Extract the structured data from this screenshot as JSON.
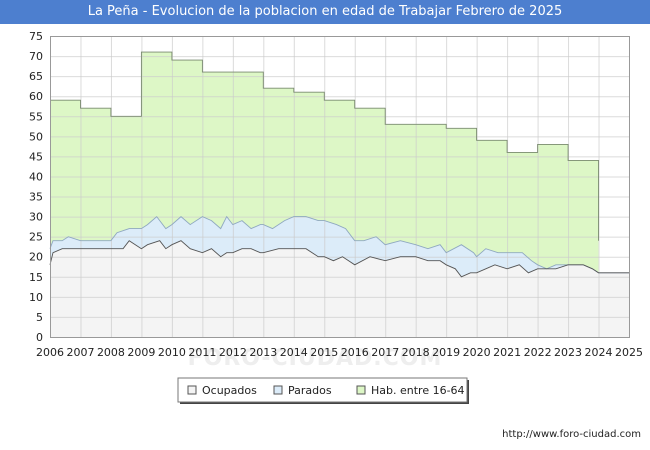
{
  "title": "La Peña - Evolucion de la poblacion en edad de Trabajar Febrero de 2025",
  "footer_url": "http://www.foro-ciudad.com",
  "watermark": "FORO-CIUDAD.COM",
  "colors": {
    "title_bg": "#4d7fcf",
    "hab": "#ddf7c6",
    "parados": "#dcecf9",
    "ocupados": "#f4f4f4",
    "grid": "#cccccc",
    "line": "#555555"
  },
  "chart_data": {
    "type": "area",
    "title": "La Peña - Evolucion de la poblacion en edad de Trabajar Febrero de 2025",
    "xlim": [
      2006,
      2025
    ],
    "ylim": [
      0,
      75
    ],
    "x_ticks": [
      "2006",
      "2007",
      "2008",
      "2009",
      "2010",
      "2011",
      "2012",
      "2013",
      "2014",
      "2015",
      "2016",
      "2017",
      "2018",
      "2019",
      "2020",
      "2021",
      "2022",
      "2023",
      "2024",
      "2025"
    ],
    "y_ticks": [
      "0",
      "5",
      "10",
      "15",
      "20",
      "25",
      "30",
      "35",
      "40",
      "45",
      "50",
      "55",
      "60",
      "65",
      "70",
      "75"
    ],
    "grid": true,
    "legend_position": "bottom",
    "legend": [
      {
        "label": "Ocupados",
        "color": "#f4f4f4"
      },
      {
        "label": "Parados",
        "color": "#dcecf9"
      },
      {
        "label": "Hab. entre 16-64",
        "color": "#ddf7c6"
      }
    ],
    "series": [
      {
        "name": "Hab. entre 16-64",
        "step": true,
        "points": [
          [
            2006,
            59
          ],
          [
            2007,
            57
          ],
          [
            2008,
            55
          ],
          [
            2009,
            71
          ],
          [
            2010,
            69
          ],
          [
            2011,
            66
          ],
          [
            2013,
            62
          ],
          [
            2014,
            61
          ],
          [
            2015,
            59
          ],
          [
            2016,
            57
          ],
          [
            2017,
            53
          ],
          [
            2019,
            52
          ],
          [
            2020,
            49
          ],
          [
            2021,
            46
          ],
          [
            2022,
            48
          ],
          [
            2023,
            44
          ],
          [
            2024,
            24
          ]
        ]
      },
      {
        "name": "Parados",
        "points": [
          [
            2006,
            22
          ],
          [
            2006.1,
            24
          ],
          [
            2006.4,
            24
          ],
          [
            2006.6,
            25
          ],
          [
            2007,
            24
          ],
          [
            2007.5,
            24
          ],
          [
            2008,
            24
          ],
          [
            2008.2,
            26
          ],
          [
            2008.6,
            27
          ],
          [
            2009,
            27
          ],
          [
            2009.2,
            28
          ],
          [
            2009.5,
            30
          ],
          [
            2009.8,
            27
          ],
          [
            2010,
            28
          ],
          [
            2010.3,
            30
          ],
          [
            2010.6,
            28
          ],
          [
            2011,
            30
          ],
          [
            2011.3,
            29
          ],
          [
            2011.6,
            27
          ],
          [
            2011.8,
            30
          ],
          [
            2012,
            28
          ],
          [
            2012.3,
            29
          ],
          [
            2012.6,
            27
          ],
          [
            2012.9,
            28
          ],
          [
            2013,
            28
          ],
          [
            2013.3,
            27
          ],
          [
            2013.7,
            29
          ],
          [
            2014,
            30
          ],
          [
            2014.4,
            30
          ],
          [
            2014.8,
            29
          ],
          [
            2015,
            29
          ],
          [
            2015.4,
            28
          ],
          [
            2015.7,
            27
          ],
          [
            2016,
            24
          ],
          [
            2016.3,
            24
          ],
          [
            2016.7,
            25
          ],
          [
            2017,
            23
          ],
          [
            2017.5,
            24
          ],
          [
            2018,
            23
          ],
          [
            2018.4,
            22
          ],
          [
            2018.8,
            23
          ],
          [
            2019,
            21
          ],
          [
            2019.5,
            23
          ],
          [
            2019.9,
            21
          ],
          [
            2020,
            20
          ],
          [
            2020.3,
            22
          ],
          [
            2020.7,
            21
          ],
          [
            2021,
            21
          ],
          [
            2021.5,
            21
          ],
          [
            2021.8,
            19
          ],
          [
            2022,
            18
          ],
          [
            2022.3,
            17
          ],
          [
            2022.6,
            18
          ],
          [
            2023,
            18
          ],
          [
            2023.5,
            18
          ],
          [
            2023.8,
            17
          ],
          [
            2024,
            16
          ],
          [
            2025,
            16
          ]
        ]
      },
      {
        "name": "Ocupados",
        "points": [
          [
            2006,
            18
          ],
          [
            2006.1,
            21
          ],
          [
            2006.4,
            22
          ],
          [
            2007,
            22
          ],
          [
            2007.5,
            22
          ],
          [
            2008,
            22
          ],
          [
            2008.4,
            22
          ],
          [
            2008.6,
            24
          ],
          [
            2009,
            22
          ],
          [
            2009.2,
            23
          ],
          [
            2009.6,
            24
          ],
          [
            2009.8,
            22
          ],
          [
            2010,
            23
          ],
          [
            2010.3,
            24
          ],
          [
            2010.6,
            22
          ],
          [
            2011,
            21
          ],
          [
            2011.3,
            22
          ],
          [
            2011.6,
            20
          ],
          [
            2011.8,
            21
          ],
          [
            2012,
            21
          ],
          [
            2012.3,
            22
          ],
          [
            2012.6,
            22
          ],
          [
            2012.9,
            21
          ],
          [
            2013,
            21
          ],
          [
            2013.5,
            22
          ],
          [
            2014,
            22
          ],
          [
            2014.4,
            22
          ],
          [
            2014.8,
            20
          ],
          [
            2015,
            20
          ],
          [
            2015.3,
            19
          ],
          [
            2015.6,
            20
          ],
          [
            2015.8,
            19
          ],
          [
            2016,
            18
          ],
          [
            2016.5,
            20
          ],
          [
            2017,
            19
          ],
          [
            2017.5,
            20
          ],
          [
            2018,
            20
          ],
          [
            2018.4,
            19
          ],
          [
            2018.8,
            19
          ],
          [
            2019,
            18
          ],
          [
            2019.3,
            17
          ],
          [
            2019.5,
            15
          ],
          [
            2019.8,
            16
          ],
          [
            2020,
            16
          ],
          [
            2020.3,
            17
          ],
          [
            2020.6,
            18
          ],
          [
            2021,
            17
          ],
          [
            2021.4,
            18
          ],
          [
            2021.7,
            16
          ],
          [
            2022,
            17
          ],
          [
            2022.3,
            17
          ],
          [
            2022.6,
            17
          ],
          [
            2023,
            18
          ],
          [
            2023.5,
            18
          ],
          [
            2023.8,
            17
          ],
          [
            2024,
            16
          ],
          [
            2025,
            16
          ]
        ]
      }
    ]
  }
}
